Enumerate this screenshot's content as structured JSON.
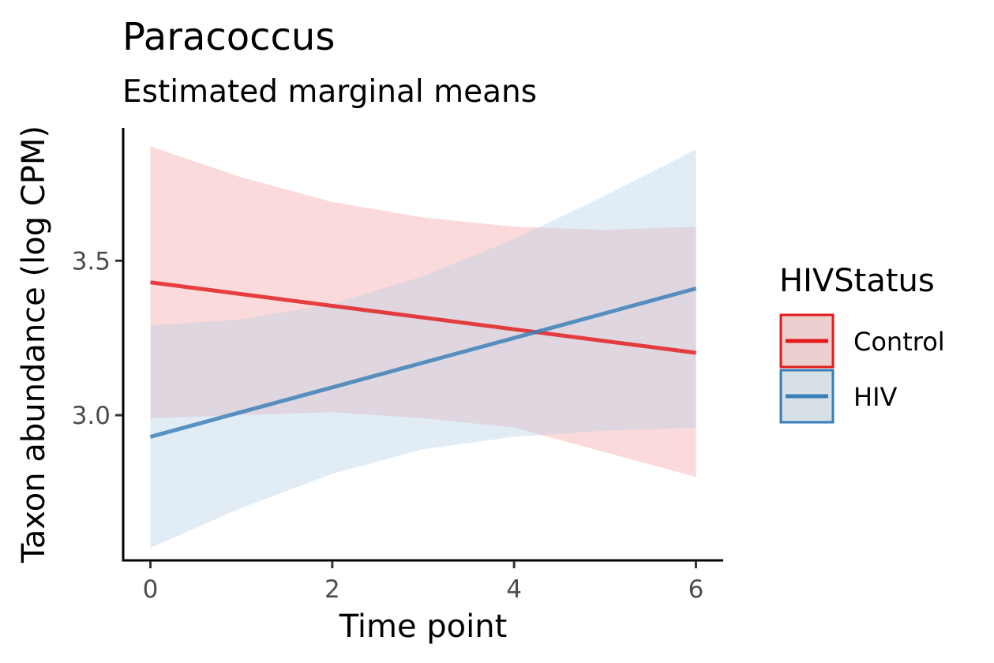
{
  "chart_data": {
    "type": "line",
    "title": "Paracoccus",
    "subtitle": "Estimated marginal means",
    "xlabel": "Time point",
    "ylabel": "Taxon abundance (log CPM)",
    "xlim": [
      -0.3,
      6.3
    ],
    "ylim": [
      2.53,
      3.93
    ],
    "xticks": [
      0,
      2,
      4,
      6
    ],
    "xtick_labels": [
      "0",
      "2",
      "4",
      "6"
    ],
    "yticks": [
      3.0,
      3.5
    ],
    "ytick_labels": [
      "3.0",
      "3.5"
    ],
    "grid": false,
    "legend": {
      "title": "HIVStatus",
      "position": "right"
    },
    "series": [
      {
        "name": "Control",
        "color": "#e41a1c",
        "ribbon_color": "#f4a6a7",
        "x": [
          0,
          1,
          2,
          3,
          4,
          5,
          6
        ],
        "y": [
          3.43,
          3.392,
          3.354,
          3.316,
          3.278,
          3.24,
          3.202
        ],
        "lower": [
          2.99,
          3.0,
          3.01,
          2.99,
          2.96,
          2.88,
          2.8
        ],
        "upper": [
          3.87,
          3.77,
          3.69,
          3.64,
          3.61,
          3.6,
          3.61
        ]
      },
      {
        "name": "HIV",
        "color": "#377eb8",
        "ribbon_color": "#b9d1e8",
        "x": [
          0,
          1,
          2,
          3,
          4,
          5,
          6
        ],
        "y": [
          2.93,
          3.01,
          3.09,
          3.17,
          3.25,
          3.33,
          3.41
        ],
        "lower": [
          2.57,
          2.7,
          2.81,
          2.89,
          2.93,
          2.95,
          2.96
        ],
        "upper": [
          3.29,
          3.31,
          3.36,
          3.45,
          3.57,
          3.71,
          3.86
        ]
      }
    ]
  }
}
